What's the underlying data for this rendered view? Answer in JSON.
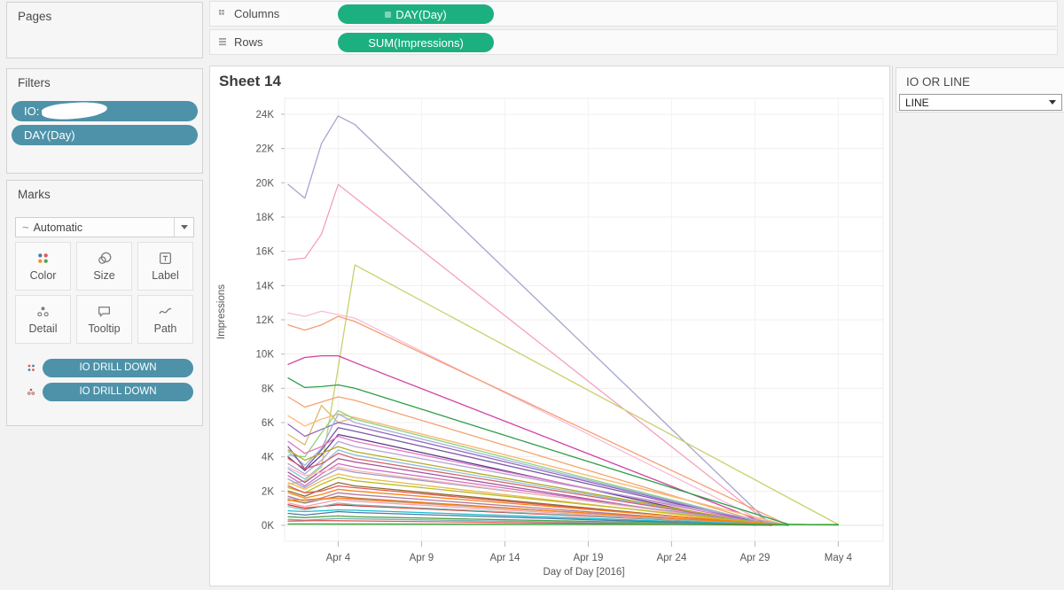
{
  "shelves": {
    "columns_label": "Columns",
    "rows_label": "Rows",
    "columns_pill": "DAY(Day)",
    "rows_pill": "SUM(Impressions)"
  },
  "pages": {
    "title": "Pages"
  },
  "filters": {
    "title": "Filters",
    "pills": [
      {
        "label": "IO:",
        "redacted": true
      },
      {
        "label": "DAY(Day)"
      }
    ]
  },
  "marks": {
    "title": "Marks",
    "mark_type_icon": "~",
    "mark_type": "Automatic",
    "buttons": [
      {
        "label": "Color"
      },
      {
        "label": "Size"
      },
      {
        "label": "Label"
      },
      {
        "label": "Detail"
      },
      {
        "label": "Tooltip"
      },
      {
        "label": "Path"
      }
    ],
    "pills": [
      {
        "label": "IO DRILL DOWN"
      },
      {
        "label": "IO DRILL DOWN"
      }
    ]
  },
  "sheet": {
    "title": "Sheet 14"
  },
  "parameter": {
    "title": "IO OR LINE",
    "value": "LINE"
  },
  "colors": {
    "pill_blue": "#4d92a8",
    "pill_green": "#1cb080",
    "sheet_bg": "#ffffff",
    "panel_bg": "#f2f2f2",
    "axis_text": "#565656"
  },
  "chart_data": {
    "type": "line",
    "title": "Sheet 14",
    "xlabel": "Day of Day [2016]",
    "ylabel": "Impressions",
    "x_tick_labels": [
      "Apr 4",
      "Apr 9",
      "Apr 14",
      "Apr 19",
      "Apr 24",
      "Apr 29",
      "May 4"
    ],
    "x_ticks_days_from_apr1": [
      3,
      8,
      13,
      18,
      23,
      28,
      33
    ],
    "x_range_days_from_apr1": [
      0,
      35.5
    ],
    "y_tick_labels": [
      "0K",
      "2K",
      "4K",
      "6K",
      "8K",
      "10K",
      "12K",
      "14K",
      "16K",
      "18K",
      "20K",
      "22K",
      "24K"
    ],
    "y_ticks": [
      0,
      2000,
      4000,
      6000,
      8000,
      10000,
      12000,
      14000,
      16000,
      18000,
      20000,
      22000,
      24000
    ],
    "ylim": [
      0,
      24900
    ],
    "grid": true,
    "legend": "none",
    "series": [
      {
        "color": "#a4a6ce",
        "points": [
          [
            0,
            19900
          ],
          [
            1,
            19100
          ],
          [
            2,
            22300
          ],
          [
            3,
            23900
          ],
          [
            4,
            23400
          ],
          [
            29,
            0
          ]
        ]
      },
      {
        "color": "#f49fc3",
        "points": [
          [
            0,
            15500
          ],
          [
            1,
            15600
          ],
          [
            2,
            17000
          ],
          [
            3,
            19900
          ],
          [
            29,
            0
          ]
        ]
      },
      {
        "color": "#c8d06b",
        "points": [
          [
            0,
            2400
          ],
          [
            1,
            2600
          ],
          [
            2,
            3400
          ],
          [
            3,
            9200
          ],
          [
            4,
            15200
          ],
          [
            33,
            50
          ]
        ]
      },
      {
        "color": "#f6bdd8",
        "points": [
          [
            0,
            12400
          ],
          [
            1,
            12200
          ],
          [
            2,
            12500
          ],
          [
            3,
            12300
          ],
          [
            4,
            12100
          ],
          [
            29,
            0
          ]
        ]
      },
      {
        "color": "#f59d73",
        "points": [
          [
            0,
            11700
          ],
          [
            1,
            11400
          ],
          [
            2,
            11700
          ],
          [
            3,
            12200
          ],
          [
            4,
            11900
          ],
          [
            30,
            0
          ]
        ]
      },
      {
        "color": "#cf3fa0",
        "points": [
          [
            0,
            9400
          ],
          [
            1,
            9800
          ],
          [
            2,
            9900
          ],
          [
            3,
            9900
          ],
          [
            4,
            9500
          ],
          [
            29,
            0
          ]
        ]
      },
      {
        "color": "#2f9e49",
        "points": [
          [
            0,
            8600
          ],
          [
            1,
            8050
          ],
          [
            2,
            8100
          ],
          [
            3,
            8200
          ],
          [
            4,
            8000
          ],
          [
            30,
            60
          ],
          [
            33,
            20
          ]
        ]
      },
      {
        "color": "#f2a471",
        "points": [
          [
            0,
            7500
          ],
          [
            1,
            6900
          ],
          [
            2,
            7200
          ],
          [
            3,
            7500
          ],
          [
            4,
            7300
          ],
          [
            29,
            0
          ]
        ]
      },
      {
        "color": "#d9ba6e",
        "points": [
          [
            0,
            5300
          ],
          [
            1,
            4700
          ],
          [
            2,
            7000
          ],
          [
            3,
            6000
          ],
          [
            4,
            6300
          ],
          [
            30,
            0
          ]
        ]
      },
      {
        "color": "#ffbb78",
        "points": [
          [
            0,
            6400
          ],
          [
            1,
            5800
          ],
          [
            2,
            6200
          ],
          [
            3,
            6500
          ],
          [
            4,
            6300
          ],
          [
            30,
            0
          ]
        ]
      },
      {
        "color": "#9467bd",
        "points": [
          [
            0,
            5900
          ],
          [
            1,
            5200
          ],
          [
            2,
            5600
          ],
          [
            3,
            6000
          ],
          [
            4,
            5800
          ],
          [
            29,
            0
          ]
        ]
      },
      {
        "color": "#90d080",
        "points": [
          [
            0,
            4100
          ],
          [
            1,
            4000
          ],
          [
            2,
            5400
          ],
          [
            3,
            6700
          ],
          [
            4,
            6200
          ],
          [
            29,
            0
          ]
        ]
      },
      {
        "color": "#9fb3de",
        "points": [
          [
            0,
            4300
          ],
          [
            1,
            3500
          ],
          [
            2,
            4500
          ],
          [
            3,
            6500
          ],
          [
            4,
            6000
          ],
          [
            29,
            0
          ]
        ]
      },
      {
        "color": "#7b5aa6",
        "points": [
          [
            0,
            4600
          ],
          [
            1,
            3300
          ],
          [
            2,
            4400
          ],
          [
            3,
            5700
          ],
          [
            4,
            5500
          ],
          [
            29,
            0
          ]
        ]
      },
      {
        "color": "#5b3b8c",
        "points": [
          [
            0,
            4000
          ],
          [
            1,
            3200
          ],
          [
            2,
            4100
          ],
          [
            3,
            5300
          ],
          [
            4,
            5100
          ],
          [
            28,
            0
          ]
        ]
      },
      {
        "color": "#e377c2",
        "points": [
          [
            0,
            4900
          ],
          [
            1,
            4200
          ],
          [
            2,
            4600
          ],
          [
            3,
            5200
          ],
          [
            4,
            4900
          ],
          [
            29,
            0
          ]
        ]
      },
      {
        "color": "#b5a2d8",
        "points": [
          [
            0,
            3600
          ],
          [
            1,
            3000
          ],
          [
            2,
            3800
          ],
          [
            3,
            4900
          ],
          [
            4,
            4600
          ],
          [
            30,
            0
          ]
        ]
      },
      {
        "color": "#8fbcdb",
        "points": [
          [
            0,
            3300
          ],
          [
            1,
            2700
          ],
          [
            2,
            3500
          ],
          [
            3,
            4400
          ],
          [
            4,
            4100
          ],
          [
            29,
            0
          ]
        ]
      },
      {
        "color": "#b2ab20",
        "points": [
          [
            0,
            4400
          ],
          [
            1,
            3800
          ],
          [
            2,
            4200
          ],
          [
            3,
            4600
          ],
          [
            4,
            4300
          ],
          [
            29,
            0
          ]
        ]
      },
      {
        "color": "#d6616b",
        "points": [
          [
            0,
            3900
          ],
          [
            1,
            3300
          ],
          [
            2,
            3600
          ],
          [
            3,
            4200
          ],
          [
            4,
            3900
          ],
          [
            29,
            0
          ]
        ]
      },
      {
        "color": "#a55194",
        "points": [
          [
            0,
            3100
          ],
          [
            1,
            2500
          ],
          [
            2,
            3200
          ],
          [
            3,
            3900
          ],
          [
            4,
            3700
          ],
          [
            28,
            0
          ]
        ]
      },
      {
        "color": "#ce6dbd",
        "points": [
          [
            0,
            2900
          ],
          [
            1,
            2300
          ],
          [
            2,
            3000
          ],
          [
            3,
            3600
          ],
          [
            4,
            3400
          ],
          [
            29,
            0
          ]
        ]
      },
      {
        "color": "#9e9ac8",
        "points": [
          [
            0,
            2700
          ],
          [
            1,
            2200
          ],
          [
            2,
            2800
          ],
          [
            3,
            3300
          ],
          [
            4,
            3100
          ],
          [
            30,
            0
          ]
        ]
      },
      {
        "color": "#f7b6b2",
        "points": [
          [
            0,
            3400
          ],
          [
            1,
            2900
          ],
          [
            2,
            3100
          ],
          [
            3,
            3400
          ],
          [
            4,
            3200
          ],
          [
            29,
            0
          ]
        ]
      },
      {
        "color": "#e7ba52",
        "points": [
          [
            0,
            2500
          ],
          [
            1,
            2100
          ],
          [
            2,
            2600
          ],
          [
            3,
            3000
          ],
          [
            4,
            2800
          ],
          [
            29,
            0
          ]
        ]
      },
      {
        "color": "#bcbd22",
        "points": [
          [
            0,
            2200
          ],
          [
            1,
            1900
          ],
          [
            2,
            2400
          ],
          [
            3,
            2800
          ],
          [
            4,
            2600
          ],
          [
            30,
            0
          ]
        ]
      },
      {
        "color": "#8c6d31",
        "points": [
          [
            0,
            2000
          ],
          [
            1,
            1700
          ],
          [
            2,
            2100
          ],
          [
            3,
            2500
          ],
          [
            4,
            2300
          ],
          [
            29,
            0
          ]
        ]
      },
      {
        "color": "#e45756",
        "points": [
          [
            0,
            2300
          ],
          [
            1,
            1900
          ],
          [
            2,
            2000
          ],
          [
            3,
            2300
          ],
          [
            4,
            2200
          ],
          [
            29,
            0
          ]
        ]
      },
      {
        "color": "#f58518",
        "points": [
          [
            0,
            1900
          ],
          [
            1,
            1600
          ],
          [
            2,
            1800
          ],
          [
            3,
            2100
          ],
          [
            4,
            2000
          ],
          [
            30,
            0
          ]
        ]
      },
      {
        "color": "#b279a2",
        "points": [
          [
            0,
            1700
          ],
          [
            1,
            1400
          ],
          [
            2,
            1600
          ],
          [
            3,
            1900
          ],
          [
            4,
            1800
          ],
          [
            29,
            0
          ]
        ]
      },
      {
        "color": "#9d755d",
        "points": [
          [
            0,
            1500
          ],
          [
            1,
            1300
          ],
          [
            2,
            1500
          ],
          [
            3,
            1700
          ],
          [
            4,
            1600
          ],
          [
            29,
            0
          ]
        ]
      },
      {
        "color": "#bab0ac",
        "points": [
          [
            0,
            1600
          ],
          [
            1,
            1400
          ],
          [
            2,
            1500
          ],
          [
            3,
            1600
          ],
          [
            4,
            1500
          ],
          [
            30,
            0
          ]
        ]
      },
      {
        "color": "#ff9da7",
        "points": [
          [
            0,
            1300
          ],
          [
            1,
            1100
          ],
          [
            2,
            1300
          ],
          [
            3,
            1500
          ],
          [
            4,
            1400
          ],
          [
            29,
            0
          ]
        ]
      },
      {
        "color": "#ff7f0e",
        "points": [
          [
            0,
            1450
          ],
          [
            1,
            1500
          ],
          [
            2,
            1550
          ],
          [
            3,
            1600
          ],
          [
            4,
            1550
          ],
          [
            30,
            0
          ]
        ]
      },
      {
        "color": "#d62728",
        "points": [
          [
            0,
            1200
          ],
          [
            1,
            1000
          ],
          [
            2,
            1100
          ],
          [
            3,
            1200
          ],
          [
            4,
            1150
          ],
          [
            30,
            0
          ]
        ]
      },
      {
        "color": "#86bcb6",
        "points": [
          [
            0,
            1100
          ],
          [
            1,
            900
          ],
          [
            2,
            1100
          ],
          [
            3,
            1300
          ],
          [
            4,
            1200
          ],
          [
            30,
            0
          ]
        ]
      },
      {
        "color": "#17becf",
        "points": [
          [
            0,
            850
          ],
          [
            1,
            800
          ],
          [
            2,
            850
          ],
          [
            3,
            900
          ],
          [
            4,
            880
          ],
          [
            30,
            0
          ]
        ]
      },
      {
        "color": "#4c78a8",
        "points": [
          [
            0,
            700
          ],
          [
            1,
            600
          ],
          [
            2,
            700
          ],
          [
            3,
            800
          ],
          [
            4,
            750
          ],
          [
            29,
            0
          ]
        ]
      },
      {
        "color": "#54a24b",
        "points": [
          [
            0,
            500
          ],
          [
            1,
            450
          ],
          [
            2,
            500
          ],
          [
            3,
            550
          ],
          [
            4,
            500
          ],
          [
            30,
            0
          ]
        ]
      },
      {
        "color": "#72b7b2",
        "points": [
          [
            0,
            350
          ],
          [
            1,
            300
          ],
          [
            2,
            350
          ],
          [
            3,
            400
          ],
          [
            4,
            380
          ],
          [
            30,
            0
          ]
        ]
      },
      {
        "color": "#e15759",
        "points": [
          [
            0,
            250
          ],
          [
            2,
            280
          ],
          [
            4,
            260
          ],
          [
            29,
            0
          ]
        ]
      },
      {
        "color": "#2ca02c",
        "points": [
          [
            0,
            80
          ],
          [
            33,
            40
          ]
        ]
      }
    ]
  }
}
